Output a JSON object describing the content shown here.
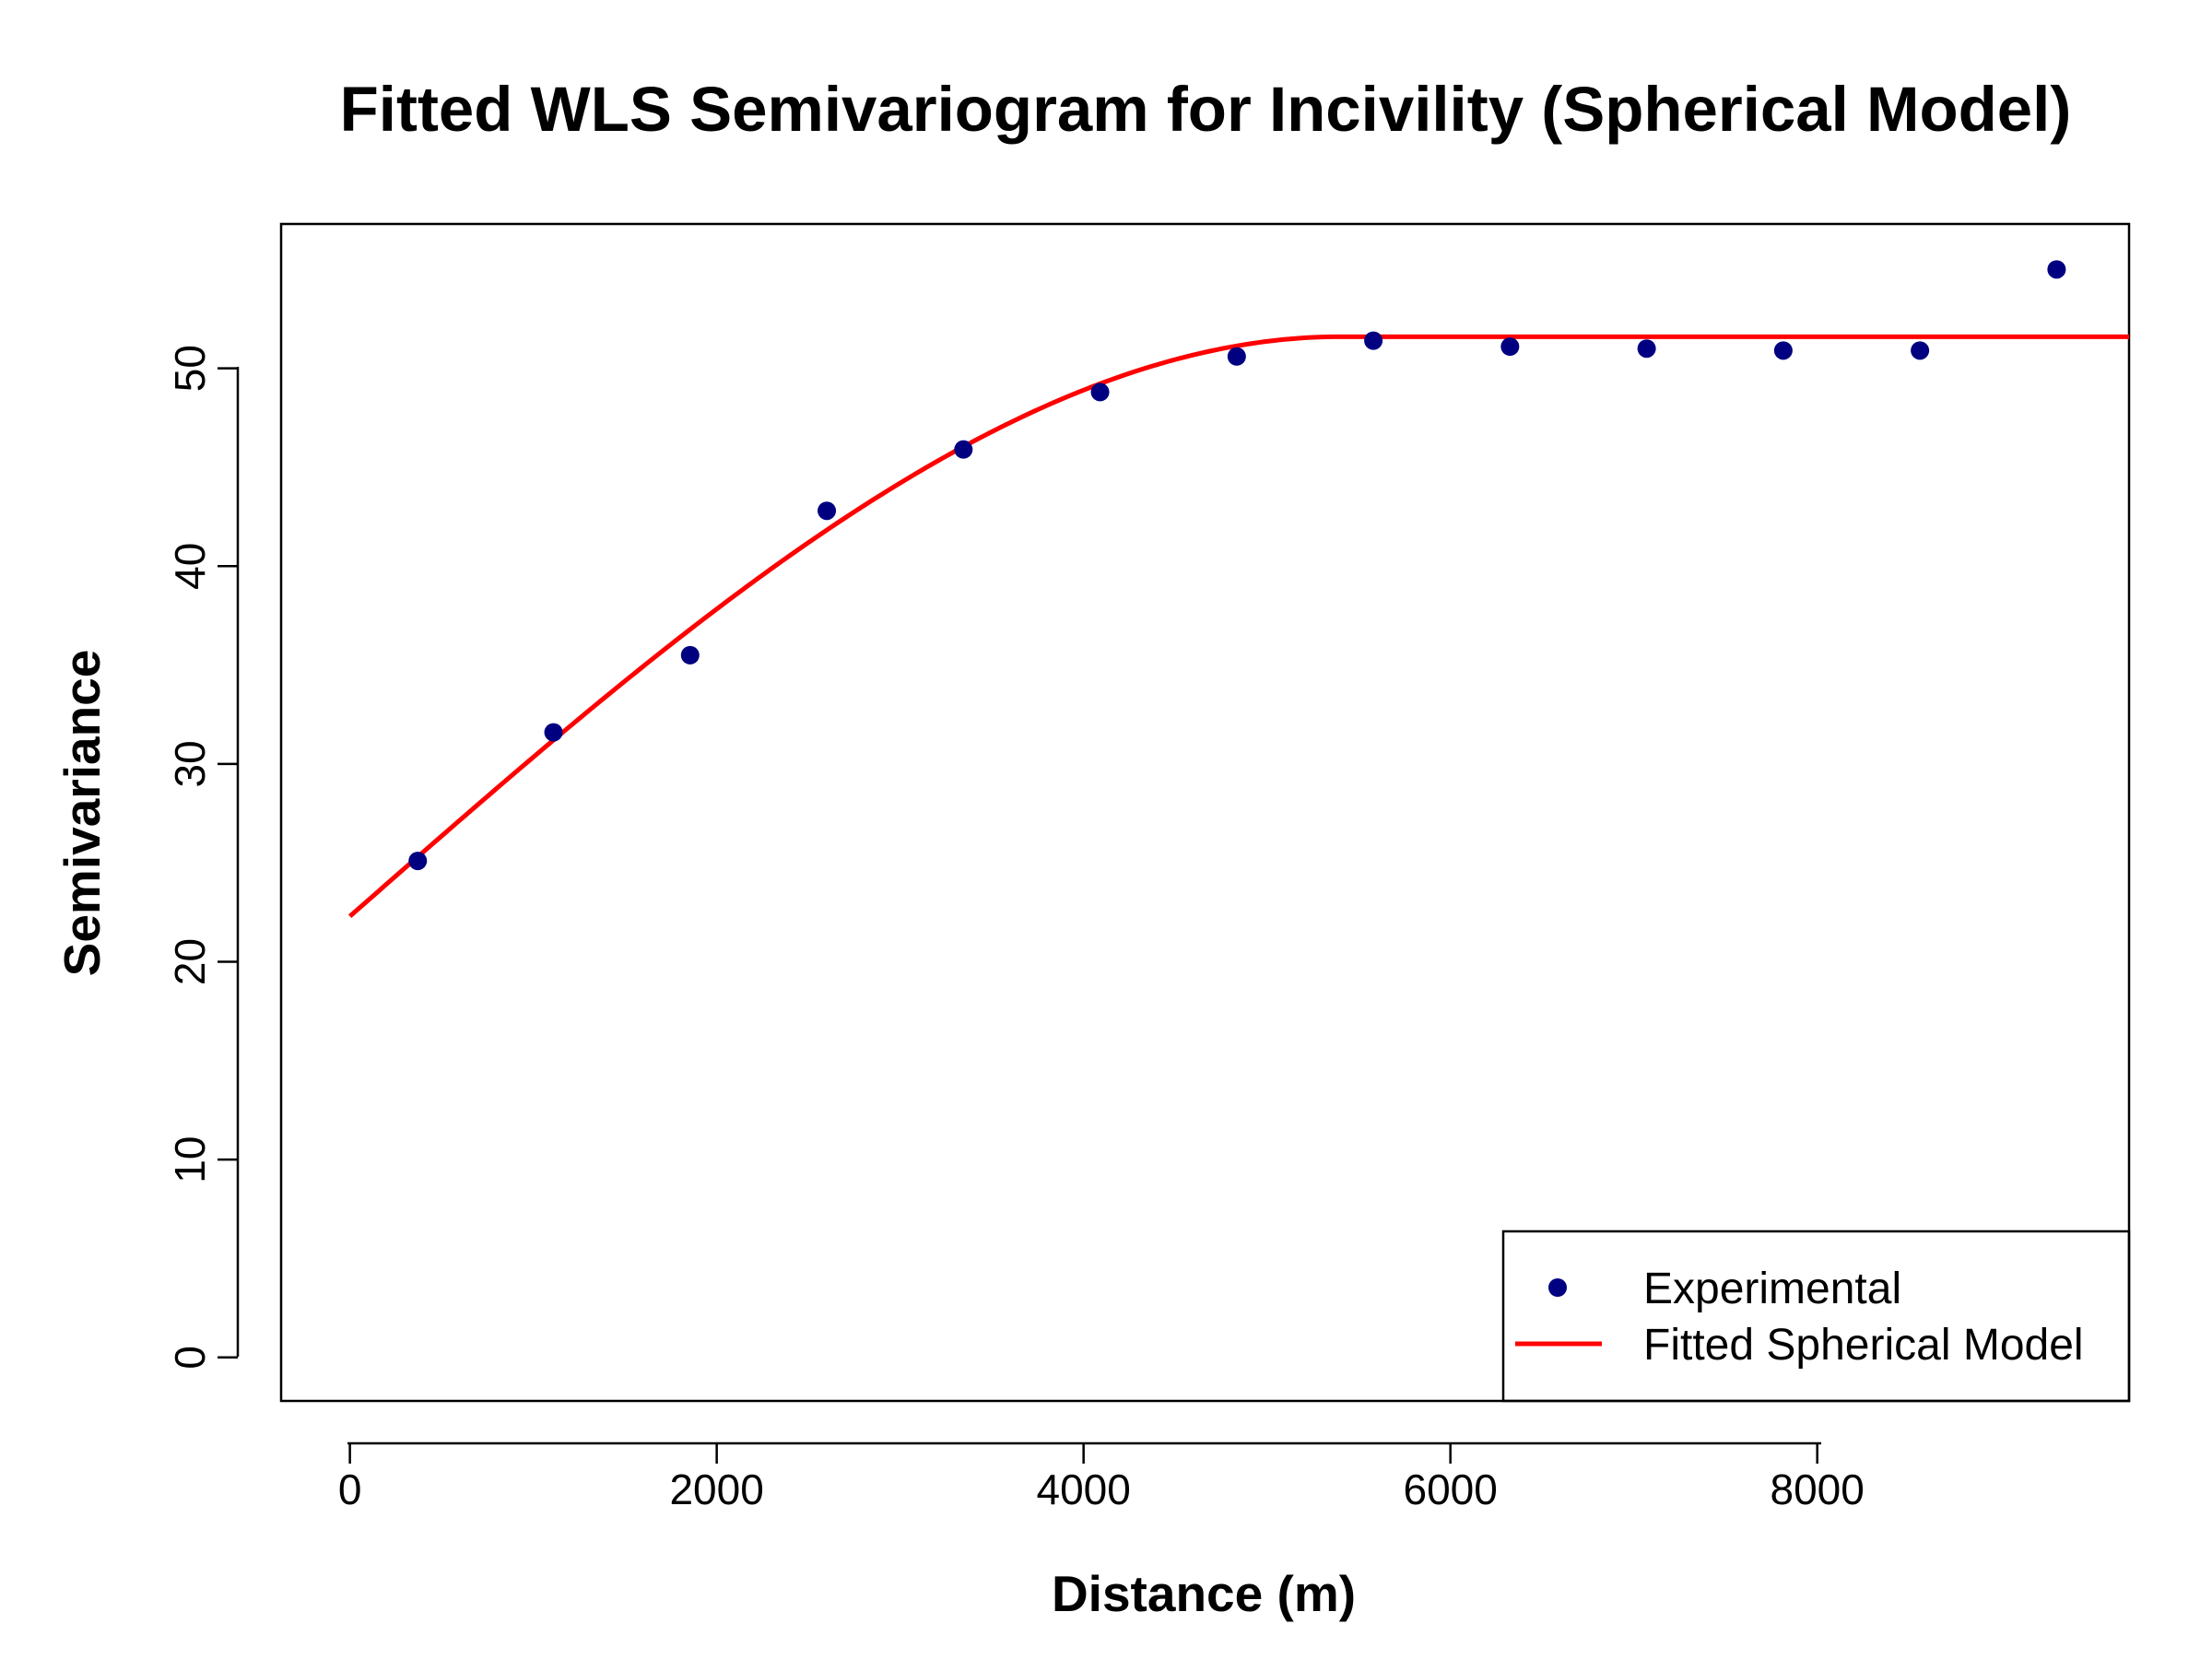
{
  "chart_data": {
    "type": "scatter",
    "title": "Fitted WLS Semivariogram for Incivility (Spherical Model)",
    "xlabel": "Distance (m)",
    "ylabel": "Semivariance",
    "xlim": [
      -375,
      9700
    ],
    "ylim": [
      -2.2,
      57.3
    ],
    "xticks": [
      0,
      2000,
      4000,
      6000,
      8000
    ],
    "yticks": [
      0,
      10,
      20,
      30,
      40,
      50
    ],
    "grid": false,
    "legend_position": "bottom-right",
    "series": [
      {
        "name": "Experimental",
        "kind": "points",
        "color": "#000080",
        "x": [
          370,
          1110,
          1855,
          2600,
          3345,
          4090,
          4835,
          5580,
          6325,
          7070,
          7815,
          8560,
          9305
        ],
        "y": [
          25.1,
          31.6,
          35.5,
          42.8,
          45.9,
          48.8,
          50.6,
          51.4,
          51.1,
          51.0,
          50.9,
          50.9,
          55.0
        ]
      },
      {
        "name": "Fitted Spherical Model",
        "kind": "line",
        "color": "#ff0000",
        "model": {
          "nugget": 22.3,
          "partial_sill": 29.3,
          "range": 5400,
          "x_from": 0,
          "x_to": 9700
        }
      }
    ]
  }
}
